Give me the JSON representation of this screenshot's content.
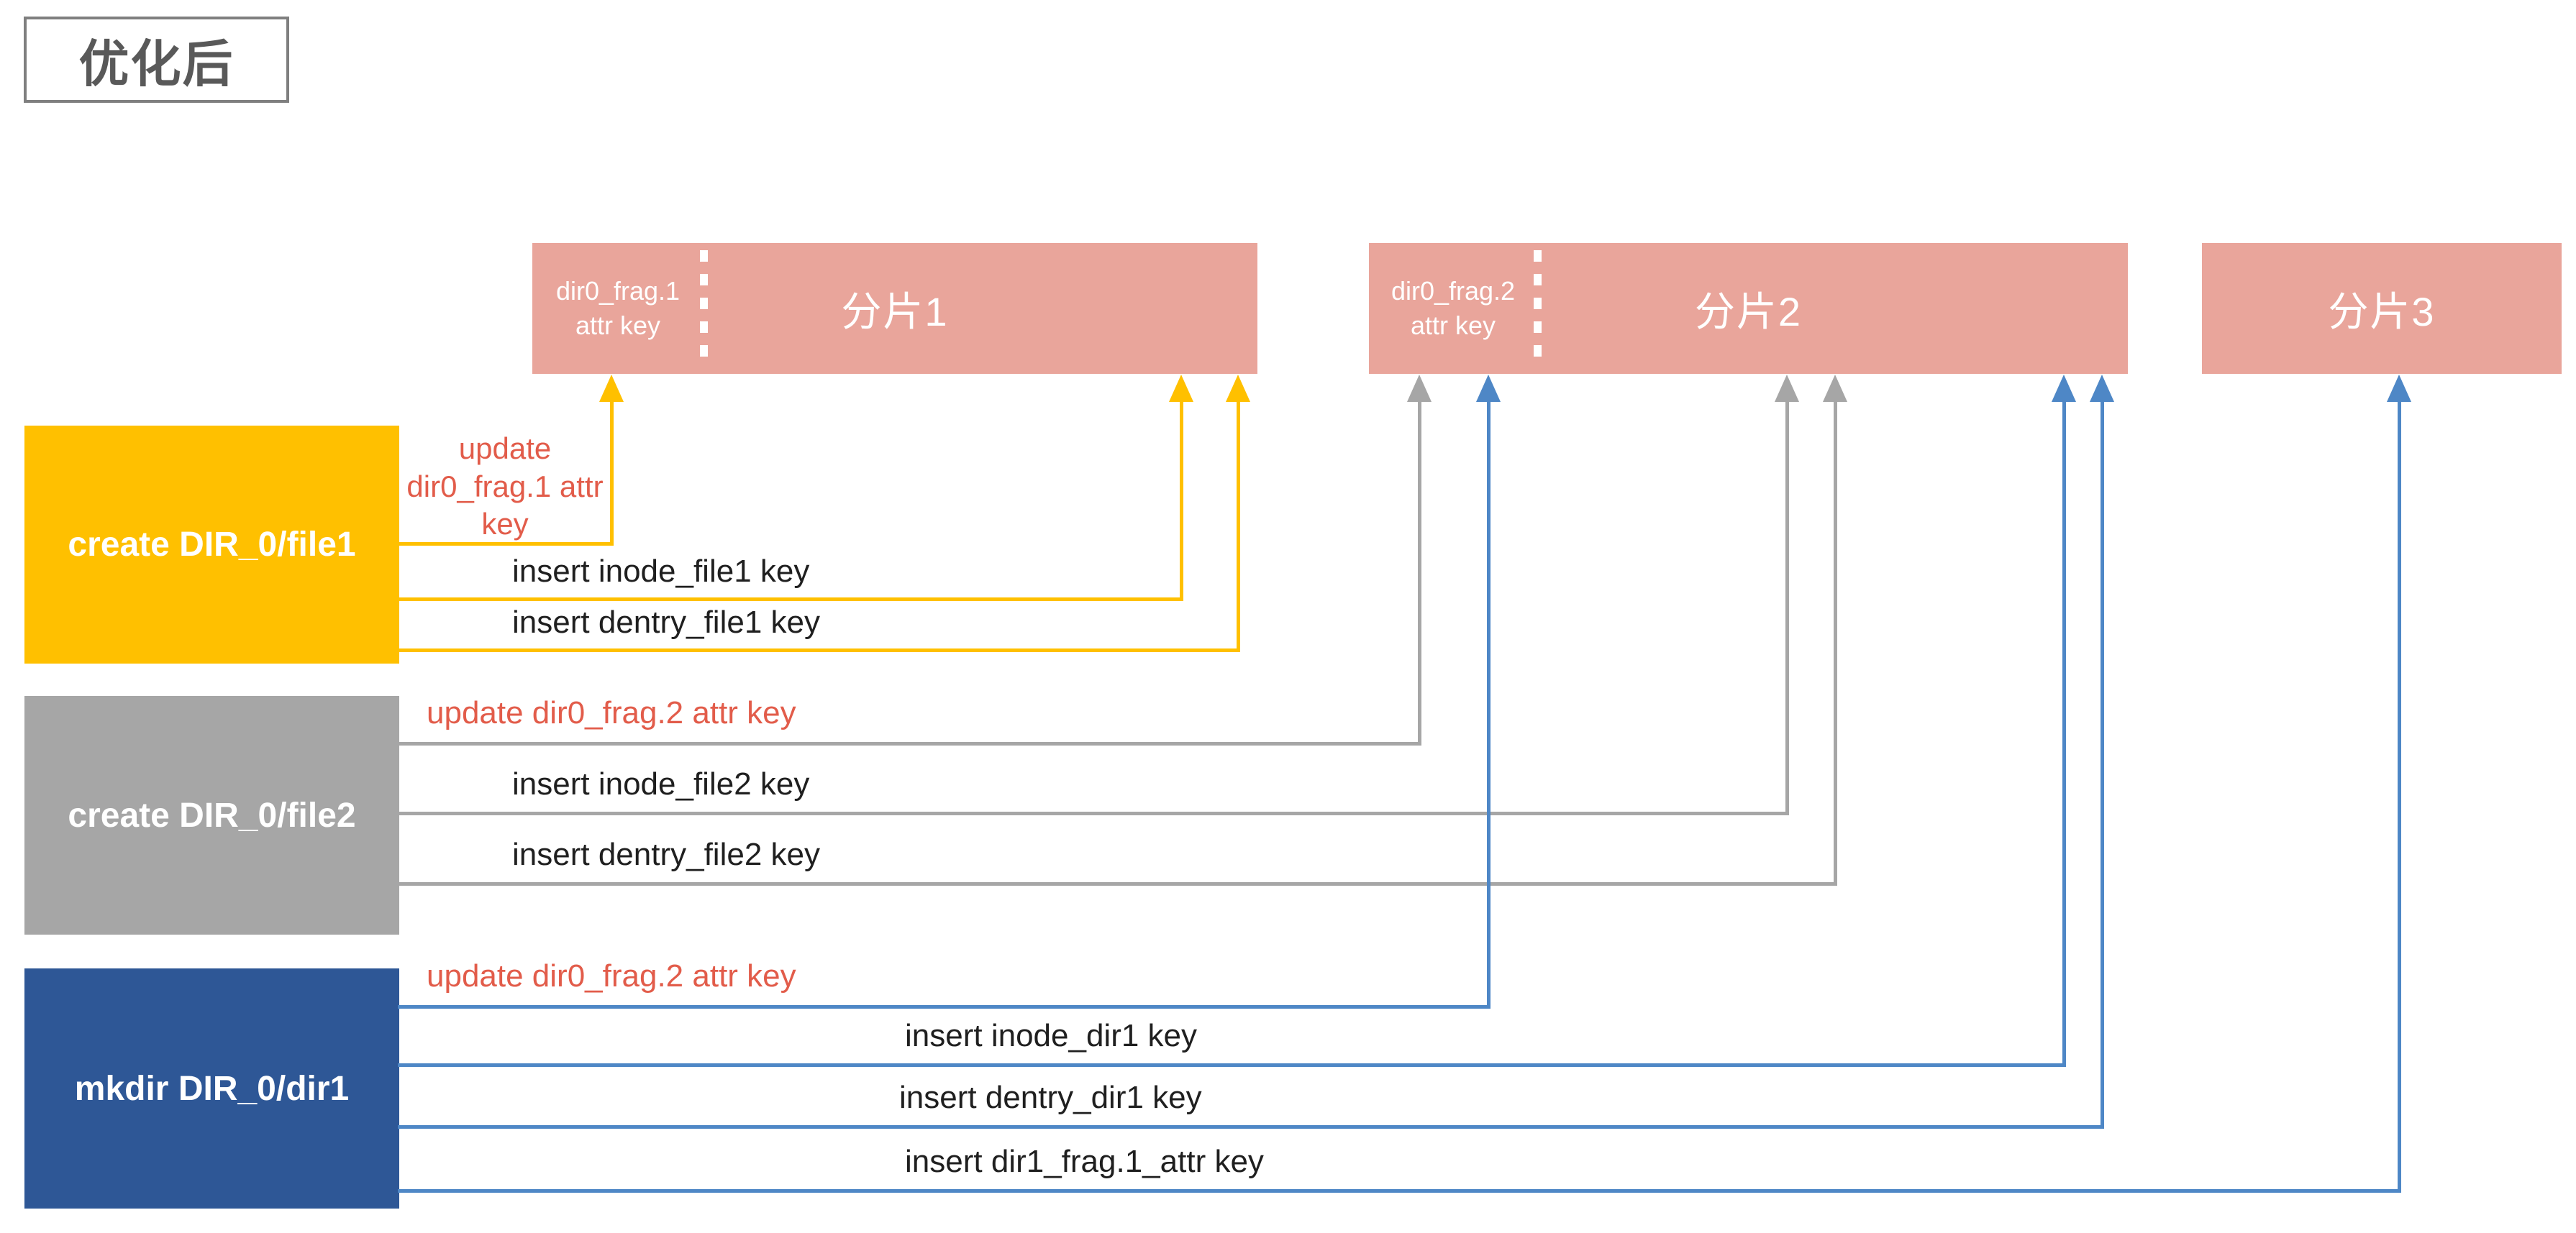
{
  "title": "优化后",
  "colors": {
    "fragment_fill": "#E9A59B",
    "yellow": "#FFC000",
    "gray": "#A6A6A6",
    "blue_box": "#2E5796",
    "blue_arrow": "#4E87C6",
    "red_text": "#E25C4A",
    "label_text": "#1F1F1F",
    "title_text": "#595959",
    "title_border": "#7F7F7F"
  },
  "fragments": [
    {
      "attr_line1": "dir0_frag.1",
      "attr_line2": "attr key",
      "name": "分片1"
    },
    {
      "attr_line1": "dir0_frag.2",
      "attr_line2": "attr key",
      "name": "分片2"
    },
    {
      "name": "分片3"
    }
  ],
  "operations": [
    {
      "label": "create DIR_0/file1",
      "actions": [
        {
          "text": "update dir0_frag.1 attr key",
          "style": "update"
        },
        {
          "text": "insert inode_file1 key",
          "style": "insert"
        },
        {
          "text": "insert dentry_file1 key",
          "style": "insert"
        }
      ]
    },
    {
      "label": "create DIR_0/file2",
      "actions": [
        {
          "text": "update dir0_frag.2 attr key",
          "style": "update"
        },
        {
          "text": "insert inode_file2 key",
          "style": "insert"
        },
        {
          "text": "insert dentry_file2 key",
          "style": "insert"
        }
      ]
    },
    {
      "label": "mkdir DIR_0/dir1",
      "actions": [
        {
          "text": "update dir0_frag.2 attr key",
          "style": "update"
        },
        {
          "text": "insert inode_dir1 key",
          "style": "insert"
        },
        {
          "text": "insert dentry_dir1 key",
          "style": "insert"
        },
        {
          "text": "insert dir1_frag.1_attr key",
          "style": "insert"
        }
      ]
    }
  ]
}
